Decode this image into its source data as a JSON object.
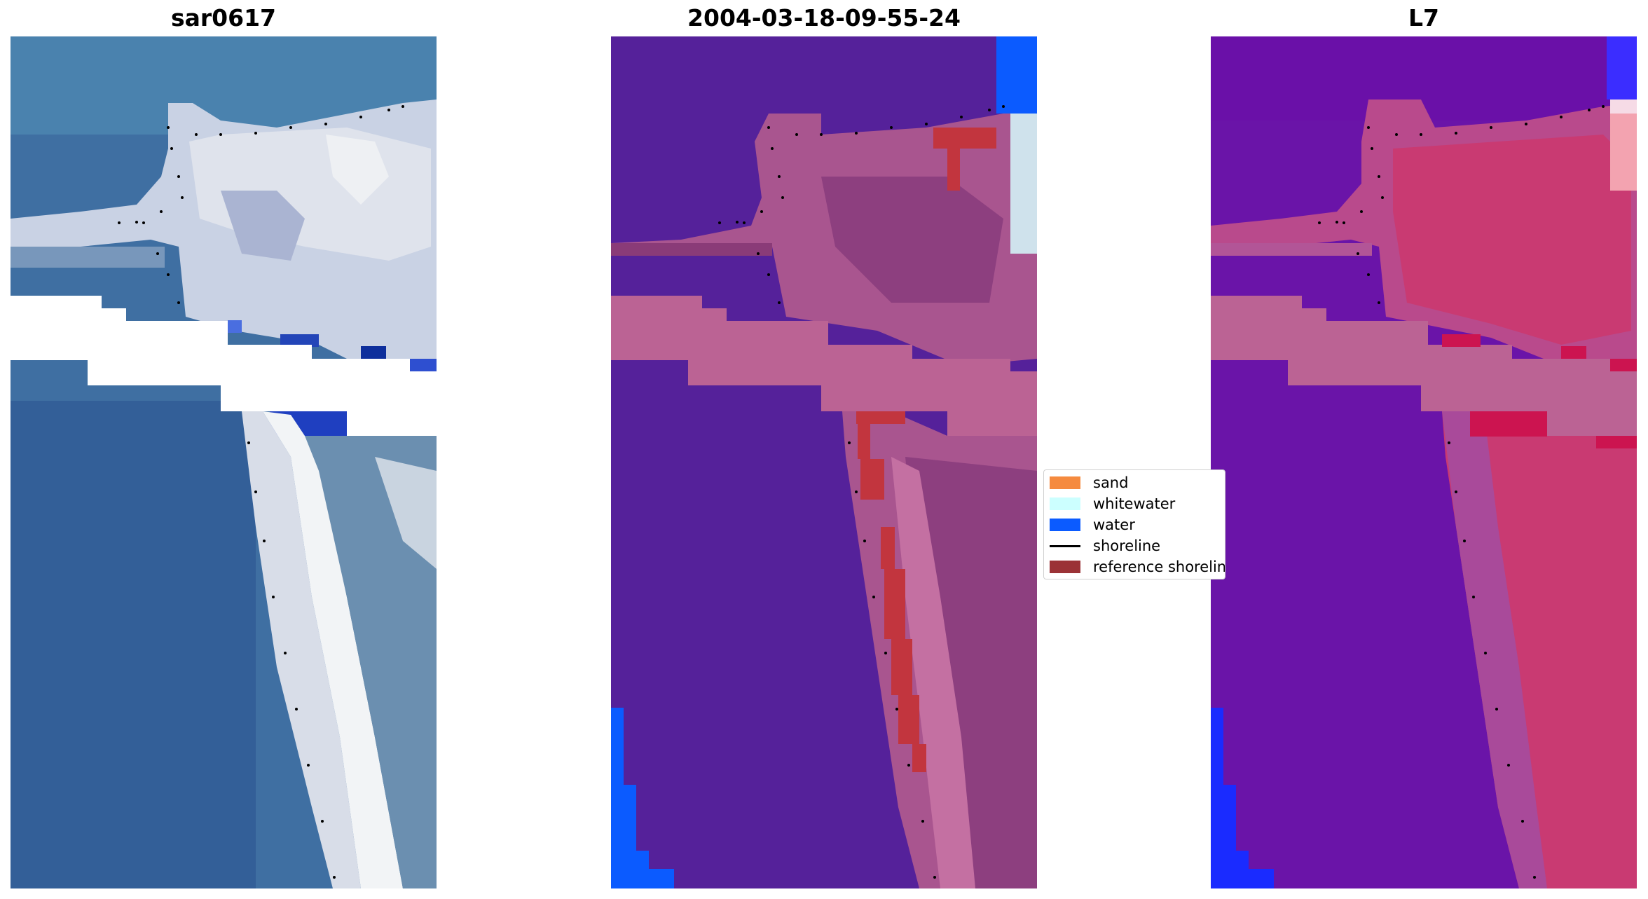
{
  "panels": [
    {
      "id": "rgb",
      "title": "sar0617"
    },
    {
      "id": "classified",
      "title": "2004-03-18-09-55-24"
    },
    {
      "id": "index",
      "title": "L7"
    }
  ],
  "legend": {
    "items": [
      {
        "label": "sand",
        "kind": "patch",
        "color": "#f58a3f"
      },
      {
        "label": "whitewater",
        "kind": "patch",
        "color": "#ccffff"
      },
      {
        "label": "water",
        "kind": "patch",
        "color": "#0b5bff"
      },
      {
        "label": "shoreline",
        "kind": "line",
        "color": "#000000"
      },
      {
        "label": "reference shoreline",
        "kind": "patch",
        "color": "#9b3236"
      }
    ]
  },
  "colors": {
    "rgb_water": "#3f6fa2",
    "rgb_sand": "#d9dde8",
    "rgb_deep_water": "#1d3fb0",
    "class_background": "#55219a",
    "class_sand_overlay": "#a9558f",
    "class_nodata_band": "#bb6394",
    "class_water": "#0b5bff",
    "class_reference": "#c2353e",
    "index_water": "#6a14a8",
    "index_sand": "#c93a72",
    "index_band": "#bb6394",
    "index_blue": "#1a2bff"
  }
}
